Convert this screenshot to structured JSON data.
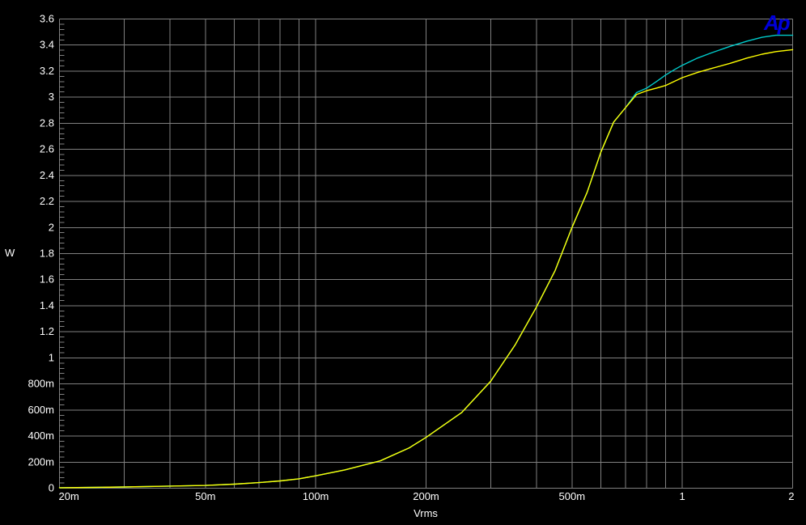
{
  "branding": {
    "logo_text": "Ap",
    "logo_color": "#0000d8"
  },
  "chart_data": {
    "type": "line",
    "title": "",
    "xlabel": "Vrms",
    "ylabel": "W",
    "grid": true,
    "legend_position": "none",
    "colors": {
      "background": "#000000",
      "grid": "#808080",
      "text": "#ffffff"
    },
    "x_axis": {
      "scale": "log",
      "min": 0.02,
      "max": 2,
      "gridlines": [
        0.02,
        0.03,
        0.04,
        0.05,
        0.06,
        0.07,
        0.08,
        0.09,
        0.1,
        0.2,
        0.3,
        0.4,
        0.5,
        0.6,
        0.7,
        0.8,
        0.9,
        1,
        2
      ],
      "ticks": [
        {
          "value": 0.02,
          "label": "20m",
          "align": "start"
        },
        {
          "value": 0.05,
          "label": "50m",
          "align": "middle"
        },
        {
          "value": 0.1,
          "label": "100m",
          "align": "middle"
        },
        {
          "value": 0.2,
          "label": "200m",
          "align": "middle"
        },
        {
          "value": 0.5,
          "label": "500m",
          "align": "middle"
        },
        {
          "value": 1,
          "label": "1",
          "align": "middle"
        },
        {
          "value": 2,
          "label": "2",
          "align": "end"
        }
      ]
    },
    "y_axis": {
      "scale": "linear",
      "min": 0,
      "max": 3.6,
      "major_step": 0.2,
      "minor_tick_step": 0.04,
      "ticks": [
        {
          "value": 3.6,
          "label": "3.6"
        },
        {
          "value": 3.4,
          "label": "3.4"
        },
        {
          "value": 3.2,
          "label": "3.2"
        },
        {
          "value": 3.0,
          "label": "3"
        },
        {
          "value": 2.8,
          "label": "2.8"
        },
        {
          "value": 2.6,
          "label": "2.6"
        },
        {
          "value": 2.4,
          "label": "2.4"
        },
        {
          "value": 2.2,
          "label": "2.2"
        },
        {
          "value": 2.0,
          "label": "2"
        },
        {
          "value": 1.8,
          "label": "1.8"
        },
        {
          "value": 1.6,
          "label": "1.6"
        },
        {
          "value": 1.4,
          "label": "1.4"
        },
        {
          "value": 1.2,
          "label": "1.2"
        },
        {
          "value": 1.0,
          "label": "1"
        },
        {
          "value": 0.8,
          "label": "800m"
        },
        {
          "value": 0.6,
          "label": "600m"
        },
        {
          "value": 0.4,
          "label": "400m"
        },
        {
          "value": 0.2,
          "label": "200m"
        },
        {
          "value": 0.0,
          "label": "0"
        }
      ]
    },
    "series": [
      {
        "name": "cyan-trace",
        "color": "#00cccc",
        "points": [
          [
            0.02,
            0.004
          ],
          [
            0.025,
            0.006
          ],
          [
            0.03,
            0.009
          ],
          [
            0.04,
            0.016
          ],
          [
            0.05,
            0.021
          ],
          [
            0.06,
            0.031
          ],
          [
            0.07,
            0.043
          ],
          [
            0.08,
            0.056
          ],
          [
            0.09,
            0.072
          ],
          [
            0.1,
            0.095
          ],
          [
            0.12,
            0.14
          ],
          [
            0.15,
            0.21
          ],
          [
            0.18,
            0.31
          ],
          [
            0.2,
            0.39
          ],
          [
            0.25,
            0.58
          ],
          [
            0.3,
            0.82
          ],
          [
            0.35,
            1.1
          ],
          [
            0.4,
            1.39
          ],
          [
            0.45,
            1.67
          ],
          [
            0.5,
            2.0
          ],
          [
            0.55,
            2.27
          ],
          [
            0.6,
            2.58
          ],
          [
            0.65,
            2.81
          ],
          [
            0.7,
            2.92
          ],
          [
            0.75,
            3.035
          ],
          [
            0.8,
            3.07
          ],
          [
            0.85,
            3.12
          ],
          [
            0.9,
            3.17
          ],
          [
            0.95,
            3.21
          ],
          [
            1.0,
            3.245
          ],
          [
            1.1,
            3.3
          ],
          [
            1.2,
            3.34
          ],
          [
            1.35,
            3.39
          ],
          [
            1.5,
            3.43
          ],
          [
            1.65,
            3.46
          ],
          [
            1.8,
            3.475
          ],
          [
            2.0,
            3.475
          ]
        ]
      },
      {
        "name": "yellow-trace",
        "color": "#ffff00",
        "points": [
          [
            0.02,
            0.004
          ],
          [
            0.025,
            0.006
          ],
          [
            0.03,
            0.009
          ],
          [
            0.04,
            0.016
          ],
          [
            0.05,
            0.021
          ],
          [
            0.06,
            0.031
          ],
          [
            0.07,
            0.043
          ],
          [
            0.08,
            0.056
          ],
          [
            0.09,
            0.072
          ],
          [
            0.1,
            0.095
          ],
          [
            0.12,
            0.14
          ],
          [
            0.15,
            0.21
          ],
          [
            0.18,
            0.31
          ],
          [
            0.2,
            0.39
          ],
          [
            0.25,
            0.58
          ],
          [
            0.3,
            0.82
          ],
          [
            0.35,
            1.1
          ],
          [
            0.4,
            1.39
          ],
          [
            0.45,
            1.67
          ],
          [
            0.5,
            2.0
          ],
          [
            0.55,
            2.27
          ],
          [
            0.6,
            2.58
          ],
          [
            0.65,
            2.81
          ],
          [
            0.7,
            2.92
          ],
          [
            0.75,
            3.02
          ],
          [
            0.8,
            3.05
          ],
          [
            0.85,
            3.07
          ],
          [
            0.9,
            3.09
          ],
          [
            0.95,
            3.12
          ],
          [
            1.0,
            3.15
          ],
          [
            1.1,
            3.19
          ],
          [
            1.2,
            3.22
          ],
          [
            1.35,
            3.26
          ],
          [
            1.5,
            3.3
          ],
          [
            1.65,
            3.33
          ],
          [
            1.8,
            3.35
          ],
          [
            2.0,
            3.365
          ]
        ]
      }
    ]
  }
}
